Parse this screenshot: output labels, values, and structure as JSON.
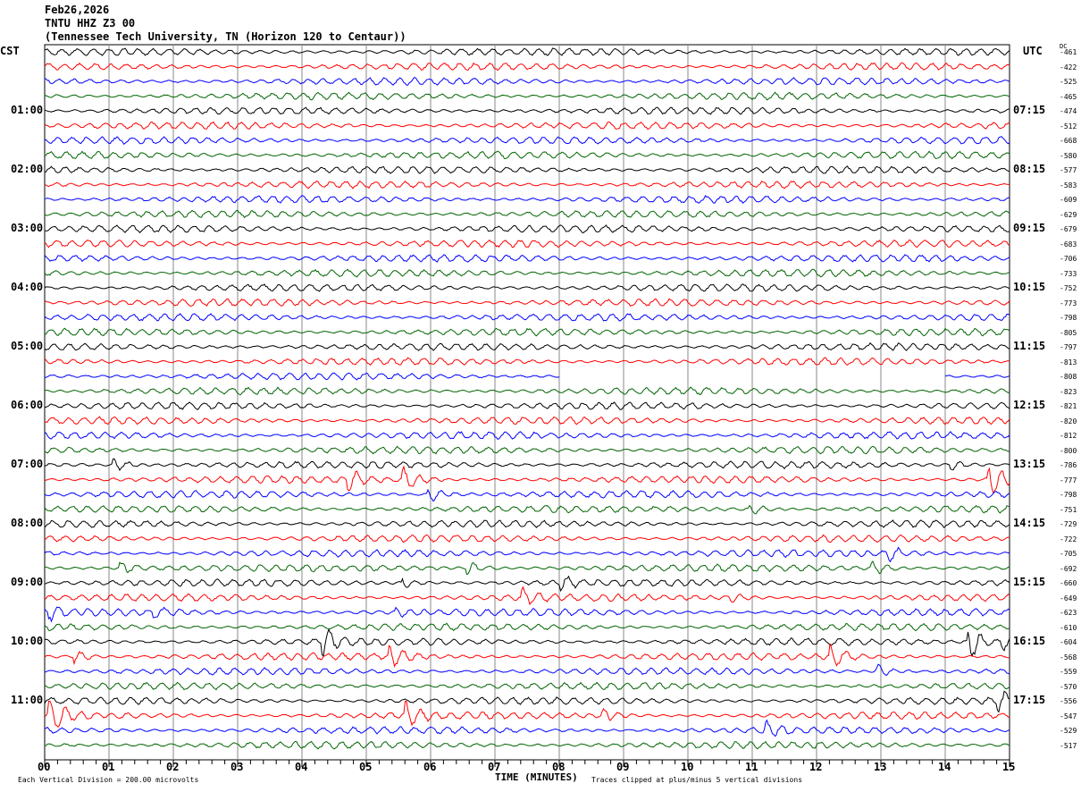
{
  "header": {
    "date": "Feb26,2026",
    "station": "TNTU HHZ Z3 00",
    "location": "(Tennessee Tech University, TN (Horizon 120 to Centaur))"
  },
  "left_tz": "CST",
  "right_tz": "UTC",
  "dc_label": "DC",
  "left_times": [
    "01:00",
    "02:00",
    "03:00",
    "04:00",
    "05:00",
    "06:00",
    "07:00",
    "08:00",
    "09:00",
    "10:00",
    "11:00"
  ],
  "right_times": [
    "07:15",
    "08:15",
    "09:15",
    "10:15",
    "11:15",
    "12:15",
    "13:15",
    "14:15",
    "15:15",
    "16:15",
    "17:15"
  ],
  "dc_values": [
    "-461",
    "-422",
    "-525",
    "-465",
    "-474",
    "-512",
    "-668",
    "-580",
    "-577",
    "-583",
    "-609",
    "-629",
    "-679",
    "-683",
    "-706",
    "-733",
    "-752",
    "-773",
    "-798",
    "-805",
    "-797",
    "-813",
    "-808",
    "-823",
    "-821",
    "-820",
    "-812",
    "-800",
    "-786",
    "-777",
    "-798",
    "-751",
    "-729",
    "-722",
    "-705",
    "-692",
    "-660",
    "-649",
    "-623",
    "-610",
    "-604",
    "-568",
    "-559",
    "-570",
    "-556",
    "-547",
    "-529",
    "-517"
  ],
  "footer": {
    "scale": "Each Vertical Division =  200.00 microvolts",
    "xlabel": "TIME (MINUTES)",
    "clip": "Traces clipped at plus/minus 5 vertical divisions"
  },
  "chart_data": {
    "type": "line",
    "title": "TNTU HHZ Z3 00 helicorder",
    "xlabel": "TIME (MINUTES)",
    "x_ticks": [
      "00",
      "01",
      "02",
      "03",
      "04",
      "05",
      "06",
      "07",
      "08",
      "09",
      "10",
      "11",
      "12",
      "13",
      "14",
      "15"
    ],
    "xlim": [
      0,
      15
    ],
    "trace_count": 48,
    "trace_minutes": 15,
    "colors": [
      "#000000",
      "#ff0000",
      "#0000ff",
      "#006400"
    ],
    "gap": {
      "trace": 22,
      "from_min": 8.0,
      "to_min": 14.0
    },
    "events": [
      {
        "trace": 28,
        "min": 1.1,
        "amp": 1.2
      },
      {
        "trace": 29,
        "min": 4.75,
        "amp": 2
      },
      {
        "trace": 29,
        "min": 5.6,
        "amp": 2.5
      },
      {
        "trace": 29,
        "min": 14.7,
        "amp": 4
      },
      {
        "trace": 28,
        "min": 14.1,
        "amp": 1
      },
      {
        "trace": 30,
        "min": 6.0,
        "amp": 1.3
      },
      {
        "trace": 31,
        "min": 11.0,
        "amp": 1
      },
      {
        "trace": 34,
        "min": 13.15,
        "amp": 1.2
      },
      {
        "trace": 35,
        "min": 1.2,
        "amp": 1.2
      },
      {
        "trace": 35,
        "min": 6.6,
        "amp": 1.2
      },
      {
        "trace": 35,
        "min": 12.9,
        "amp": 1.2
      },
      {
        "trace": 36,
        "min": 8.05,
        "amp": 1.5
      },
      {
        "trace": 36,
        "min": 5.6,
        "amp": 0.8
      },
      {
        "trace": 37,
        "min": 7.45,
        "amp": 1.5
      },
      {
        "trace": 37,
        "min": 10.7,
        "amp": 0.8
      },
      {
        "trace": 38,
        "min": 0.1,
        "amp": 1
      },
      {
        "trace": 38,
        "min": 1.7,
        "amp": 1
      },
      {
        "trace": 38,
        "min": 5.5,
        "amp": 0.7
      },
      {
        "trace": 40,
        "min": 4.35,
        "amp": 2.5
      },
      {
        "trace": 40,
        "min": 14.4,
        "amp": 3
      },
      {
        "trace": 40,
        "min": 14.9,
        "amp": 1.5
      },
      {
        "trace": 41,
        "min": 0.5,
        "amp": 1.2
      },
      {
        "trace": 41,
        "min": 5.4,
        "amp": 2.2
      },
      {
        "trace": 41,
        "min": 12.25,
        "amp": 2
      },
      {
        "trace": 42,
        "min": 12.95,
        "amp": 1.4
      },
      {
        "trace": 44,
        "min": 14.85,
        "amp": 2
      },
      {
        "trace": 45,
        "min": 0.1,
        "amp": 3.5
      },
      {
        "trace": 45,
        "min": 5.65,
        "amp": 2.5
      },
      {
        "trace": 45,
        "min": 8.7,
        "amp": 1.3
      },
      {
        "trace": 46,
        "min": 11.2,
        "amp": 1.5
      }
    ]
  }
}
